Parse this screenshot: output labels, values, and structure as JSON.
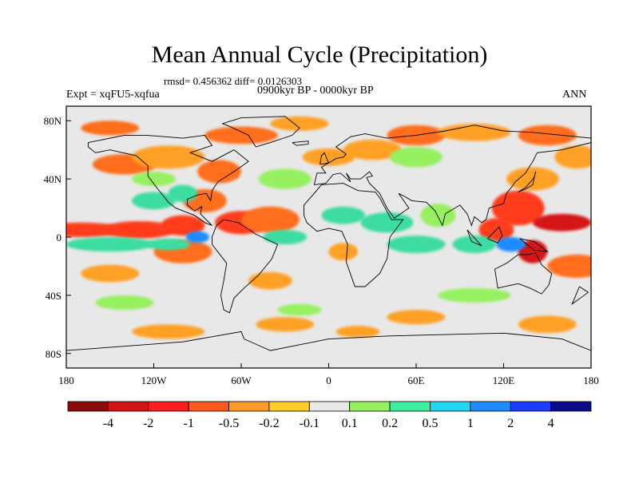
{
  "title": "Mean Annual Cycle (Precipitation)",
  "stats": "rmsd= 0.456362 diff= 0.0126303",
  "experiment": "Expt = xqFU5-xqfua",
  "period": "0900kyr BP - 0000kyr BP",
  "season": "ANN",
  "map": {
    "lon_range": [
      -180,
      180
    ],
    "lat_range": [
      -90,
      90
    ],
    "x_ticks": [
      "180",
      "120W",
      "60W",
      "0",
      "60E",
      "120E",
      "180"
    ],
    "y_ticks": [
      "80N",
      "40N",
      "0",
      "40S",
      "80S"
    ],
    "anomaly_regions": [
      {
        "lon": -170,
        "lat": 5,
        "level": -1,
        "rx": 30,
        "ry": 5
      },
      {
        "lon": -130,
        "lat": 5,
        "level": -1,
        "rx": 25,
        "ry": 6
      },
      {
        "lon": -100,
        "lat": 8,
        "level": -1,
        "rx": 15,
        "ry": 7
      },
      {
        "lon": -60,
        "lat": 10,
        "level": -1,
        "rx": 18,
        "ry": 8
      },
      {
        "lon": -40,
        "lat": 12,
        "level": -0.5,
        "rx": 20,
        "ry": 9
      },
      {
        "lon": -85,
        "lat": 25,
        "level": -0.5,
        "rx": 15,
        "ry": 8
      },
      {
        "lon": -75,
        "lat": 45,
        "level": -0.5,
        "rx": 15,
        "ry": 8
      },
      {
        "lon": -140,
        "lat": 50,
        "level": -0.5,
        "rx": 22,
        "ry": 7
      },
      {
        "lon": -110,
        "lat": 55,
        "level": -0.2,
        "rx": 25,
        "ry": 8
      },
      {
        "lon": -60,
        "lat": 70,
        "level": -0.5,
        "rx": 25,
        "ry": 6
      },
      {
        "lon": -150,
        "lat": 75,
        "level": -0.5,
        "rx": 20,
        "ry": 5
      },
      {
        "lon": -20,
        "lat": 78,
        "level": -0.2,
        "rx": 20,
        "ry": 5
      },
      {
        "lon": 0,
        "lat": 55,
        "level": -0.2,
        "rx": 18,
        "ry": 6
      },
      {
        "lon": 30,
        "lat": 60,
        "level": -0.2,
        "rx": 20,
        "ry": 7
      },
      {
        "lon": 60,
        "lat": 70,
        "level": -0.5,
        "rx": 20,
        "ry": 7
      },
      {
        "lon": 100,
        "lat": 72,
        "level": -0.2,
        "rx": 25,
        "ry": 6
      },
      {
        "lon": 150,
        "lat": 70,
        "level": -0.5,
        "rx": 20,
        "ry": 7
      },
      {
        "lon": 170,
        "lat": 55,
        "level": -0.2,
        "rx": 15,
        "ry": 8
      },
      {
        "lon": 140,
        "lat": 40,
        "level": -0.2,
        "rx": 18,
        "ry": 8
      },
      {
        "lon": 130,
        "lat": 20,
        "level": -1,
        "rx": 18,
        "ry": 12
      },
      {
        "lon": 160,
        "lat": 10,
        "level": -2,
        "rx": 20,
        "ry": 6
      },
      {
        "lon": 115,
        "lat": 5,
        "level": -1,
        "rx": 12,
        "ry": 8
      },
      {
        "lon": 140,
        "lat": -10,
        "level": -2,
        "rx": 10,
        "ry": 8
      },
      {
        "lon": 170,
        "lat": -20,
        "level": -0.5,
        "rx": 20,
        "ry": 8
      },
      {
        "lon": -100,
        "lat": -10,
        "level": -0.5,
        "rx": 20,
        "ry": 8
      },
      {
        "lon": -40,
        "lat": -30,
        "level": -0.2,
        "rx": 15,
        "ry": 6
      },
      {
        "lon": 10,
        "lat": -10,
        "level": -0.2,
        "rx": 10,
        "ry": 6
      },
      {
        "lon": -150,
        "lat": -25,
        "level": -0.2,
        "rx": 20,
        "ry": 6
      },
      {
        "lon": -110,
        "lat": -65,
        "level": -0.2,
        "rx": 25,
        "ry": 5
      },
      {
        "lon": -30,
        "lat": -60,
        "level": -0.2,
        "rx": 20,
        "ry": 5
      },
      {
        "lon": 20,
        "lat": -65,
        "level": -0.2,
        "rx": 15,
        "ry": 4
      },
      {
        "lon": 60,
        "lat": -55,
        "level": -0.2,
        "rx": 20,
        "ry": 5
      },
      {
        "lon": 150,
        "lat": -60,
        "level": -0.2,
        "rx": 20,
        "ry": 6
      },
      {
        "lon": -100,
        "lat": 30,
        "level": 0.5,
        "rx": 10,
        "ry": 6
      },
      {
        "lon": -120,
        "lat": 25,
        "level": 0.5,
        "rx": 15,
        "ry": 6
      },
      {
        "lon": -150,
        "lat": -5,
        "level": 0.5,
        "rx": 30,
        "ry": 5
      },
      {
        "lon": -110,
        "lat": -5,
        "level": 0.5,
        "rx": 15,
        "ry": 4
      },
      {
        "lon": -90,
        "lat": 0,
        "level": 2,
        "rx": 8,
        "ry": 4
      },
      {
        "lon": -30,
        "lat": 40,
        "level": 0.2,
        "rx": 18,
        "ry": 7
      },
      {
        "lon": -30,
        "lat": 0,
        "level": 0.5,
        "rx": 15,
        "ry": 5
      },
      {
        "lon": 10,
        "lat": 15,
        "level": 0.5,
        "rx": 15,
        "ry": 6
      },
      {
        "lon": 40,
        "lat": 10,
        "level": 0.5,
        "rx": 18,
        "ry": 7
      },
      {
        "lon": 60,
        "lat": -5,
        "level": 0.5,
        "rx": 20,
        "ry": 6
      },
      {
        "lon": 75,
        "lat": 15,
        "level": 0.2,
        "rx": 12,
        "ry": 8
      },
      {
        "lon": 100,
        "lat": -5,
        "level": 0.5,
        "rx": 15,
        "ry": 6
      },
      {
        "lon": 125,
        "lat": -5,
        "level": 2,
        "rx": 10,
        "ry": 5
      },
      {
        "lon": 60,
        "lat": 55,
        "level": 0.2,
        "rx": 18,
        "ry": 7
      },
      {
        "lon": -120,
        "lat": 40,
        "level": 0.2,
        "rx": 15,
        "ry": 5
      },
      {
        "lon": -140,
        "lat": -45,
        "level": 0.2,
        "rx": 20,
        "ry": 5
      },
      {
        "lon": 100,
        "lat": -40,
        "level": 0.2,
        "rx": 25,
        "ry": 5
      },
      {
        "lon": -20,
        "lat": -50,
        "level": 0.2,
        "rx": 15,
        "ry": 4
      }
    ],
    "coastlines": [
      [
        [
          -165,
          65
        ],
        [
          -140,
          70
        ],
        [
          -125,
          70
        ],
        [
          -100,
          68
        ],
        [
          -85,
          70
        ],
        [
          -80,
          63
        ],
        [
          -95,
          58
        ],
        [
          -80,
          52
        ],
        [
          -65,
          60
        ],
        [
          -55,
          52
        ],
        [
          -65,
          45
        ],
        [
          -76,
          38
        ],
        [
          -80,
          32
        ],
        [
          -81,
          25
        ],
        [
          -84,
          30
        ],
        [
          -90,
          29
        ],
        [
          -97,
          26
        ],
        [
          -97,
          22
        ],
        [
          -92,
          18
        ],
        [
          -87,
          21
        ],
        [
          -88,
          16
        ],
        [
          -83,
          11
        ],
        [
          -80,
          8
        ],
        [
          -85,
          10
        ],
        [
          -92,
          15
        ],
        [
          -105,
          20
        ],
        [
          -110,
          24
        ],
        [
          -118,
          34
        ],
        [
          -124,
          42
        ],
        [
          -124,
          49
        ],
        [
          -132,
          56
        ],
        [
          -150,
          60
        ],
        [
          -160,
          58
        ],
        [
          -165,
          62
        ],
        [
          -165,
          65
        ]
      ],
      [
        [
          -77,
          8
        ],
        [
          -72,
          12
        ],
        [
          -62,
          10
        ],
        [
          -50,
          2
        ],
        [
          -35,
          -5
        ],
        [
          -39,
          -15
        ],
        [
          -48,
          -26
        ],
        [
          -58,
          -35
        ],
        [
          -65,
          -42
        ],
        [
          -68,
          -52
        ],
        [
          -72,
          -50
        ],
        [
          -74,
          -40
        ],
        [
          -72,
          -30
        ],
        [
          -70,
          -18
        ],
        [
          -80,
          -5
        ],
        [
          -80,
          0
        ],
        [
          -77,
          8
        ]
      ],
      [
        [
          -73,
          78
        ],
        [
          -60,
          82
        ],
        [
          -30,
          83
        ],
        [
          -20,
          75
        ],
        [
          -25,
          70
        ],
        [
          -40,
          65
        ],
        [
          -50,
          62
        ],
        [
          -55,
          70
        ],
        [
          -70,
          77
        ],
        [
          -73,
          78
        ]
      ],
      [
        [
          -17,
          15
        ],
        [
          -17,
          22
        ],
        [
          -10,
          30
        ],
        [
          -5,
          36
        ],
        [
          10,
          37
        ],
        [
          20,
          32
        ],
        [
          32,
          31
        ],
        [
          35,
          27
        ],
        [
          43,
          12
        ],
        [
          51,
          12
        ],
        [
          42,
          0
        ],
        [
          40,
          -15
        ],
        [
          35,
          -25
        ],
        [
          25,
          -34
        ],
        [
          18,
          -34
        ],
        [
          12,
          -17
        ],
        [
          13,
          -5
        ],
        [
          9,
          4
        ],
        [
          0,
          6
        ],
        [
          -8,
          4
        ],
        [
          -15,
          10
        ],
        [
          -17,
          15
        ]
      ],
      [
        [
          -10,
          36
        ],
        [
          -8,
          44
        ],
        [
          -2,
          44
        ],
        [
          -5,
          48
        ],
        [
          5,
          54
        ],
        [
          10,
          55
        ],
        [
          12,
          57
        ],
        [
          5,
          62
        ],
        [
          15,
          69
        ],
        [
          25,
          71
        ],
        [
          40,
          68
        ],
        [
          60,
          70
        ],
        [
          80,
          73
        ],
        [
          100,
          77
        ],
        [
          120,
          73
        ],
        [
          140,
          72
        ],
        [
          160,
          70
        ],
        [
          180,
          68
        ],
        [
          180,
          65
        ],
        [
          160,
          60
        ],
        [
          143,
          58
        ],
        [
          140,
          52
        ],
        [
          135,
          44
        ],
        [
          128,
          38
        ],
        [
          126,
          35
        ],
        [
          122,
          30
        ],
        [
          120,
          23
        ],
        [
          110,
          20
        ],
        [
          108,
          12
        ],
        [
          105,
          10
        ],
        [
          100,
          14
        ],
        [
          98,
          8
        ],
        [
          95,
          16
        ],
        [
          90,
          22
        ],
        [
          80,
          16
        ],
        [
          78,
          8
        ],
        [
          73,
          18
        ],
        [
          67,
          24
        ],
        [
          57,
          25
        ],
        [
          52,
          28
        ],
        [
          48,
          30
        ],
        [
          55,
          20
        ],
        [
          45,
          13
        ],
        [
          40,
          20
        ],
        [
          35,
          30
        ],
        [
          28,
          37
        ],
        [
          26,
          41
        ],
        [
          30,
          42
        ],
        [
          28,
          45
        ],
        [
          22,
          40
        ],
        [
          15,
          40
        ],
        [
          12,
          44
        ],
        [
          15,
          38
        ],
        [
          8,
          44
        ],
        [
          3,
          43
        ],
        [
          -2,
          37
        ],
        [
          -10,
          36
        ]
      ],
      [
        [
          114,
          -22
        ],
        [
          122,
          -18
        ],
        [
          130,
          -12
        ],
        [
          137,
          -12
        ],
        [
          142,
          -11
        ],
        [
          146,
          -19
        ],
        [
          153,
          -25
        ],
        [
          151,
          -33
        ],
        [
          146,
          -39
        ],
        [
          138,
          -35
        ],
        [
          130,
          -32
        ],
        [
          116,
          -35
        ],
        [
          114,
          -22
        ]
      ],
      [
        [
          95,
          5
        ],
        [
          105,
          -6
        ],
        [
          98,
          -3
        ],
        [
          95,
          5
        ]
      ],
      [
        [
          109,
          -1
        ],
        [
          117,
          7
        ],
        [
          119,
          1
        ],
        [
          116,
          -4
        ],
        [
          109,
          -1
        ]
      ],
      [
        [
          131,
          -1
        ],
        [
          141,
          -3
        ],
        [
          150,
          -10
        ],
        [
          141,
          -9
        ],
        [
          131,
          -1
        ]
      ],
      [
        [
          130,
          31
        ],
        [
          135,
          34
        ],
        [
          141,
          41
        ],
        [
          142,
          45
        ],
        [
          140,
          36
        ],
        [
          135,
          33
        ],
        [
          130,
          31
        ]
      ],
      [
        [
          172,
          -34
        ],
        [
          178,
          -38
        ],
        [
          174,
          -41
        ],
        [
          167,
          -46
        ],
        [
          172,
          -34
        ]
      ],
      [
        [
          -6,
          50
        ],
        [
          0,
          51
        ],
        [
          -3,
          58
        ],
        [
          -5,
          56
        ],
        [
          -6,
          50
        ]
      ],
      [
        [
          -25,
          65
        ],
        [
          -14,
          66
        ],
        [
          -14,
          64
        ],
        [
          -22,
          63
        ],
        [
          -25,
          65
        ]
      ],
      [
        [
          -180,
          -78
        ],
        [
          -140,
          -75
        ],
        [
          -100,
          -72
        ],
        [
          -60,
          -65
        ],
        [
          -58,
          -70
        ],
        [
          -40,
          -78
        ],
        [
          0,
          -70
        ],
        [
          40,
          -68
        ],
        [
          80,
          -67
        ],
        [
          120,
          -66
        ],
        [
          160,
          -70
        ],
        [
          180,
          -78
        ]
      ]
    ]
  },
  "colorbar": {
    "levels": [
      "-4",
      "-2",
      "-1",
      "-0.5",
      "-0.2",
      "-0.1",
      "0.1",
      "0.2",
      "0.5",
      "1",
      "2",
      "4"
    ],
    "colors": [
      "#8c0a0a",
      "#d41414",
      "#ff1e1e",
      "#ff5a1e",
      "#ff9a28",
      "#ffcc28",
      "#e8e8e8",
      "#96f060",
      "#3cf0a0",
      "#22d7f0",
      "#1e8cff",
      "#1e3cff",
      "#0a0a8c"
    ]
  },
  "level_colors": {
    "-4": "#8c0a0a",
    "-2": "#d41414",
    "-1": "#ff3c1e",
    "-0.5": "#ff6e1e",
    "-0.2": "#ffa028",
    "-0.1": "#ffcc28",
    "0.2": "#96f060",
    "0.5": "#3cdca0",
    "1": "#22d7f0",
    "2": "#1e8cff",
    "4": "#1e3cff"
  }
}
